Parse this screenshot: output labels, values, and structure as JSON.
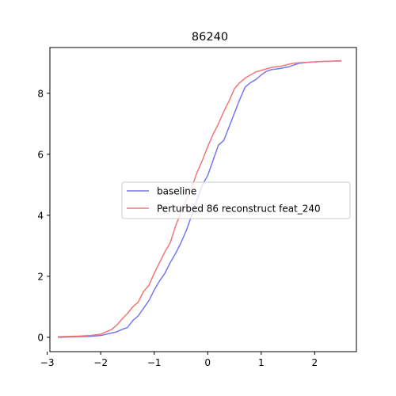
{
  "chart_data": {
    "type": "line",
    "title": "86240",
    "xlabel": "",
    "ylabel": "",
    "xlim": [
      -2.95,
      2.78
    ],
    "ylim": [
      -0.47,
      9.5
    ],
    "xticks": [
      -3,
      -2,
      -1,
      0,
      1,
      2
    ],
    "yticks": [
      0,
      2,
      4,
      6,
      8
    ],
    "grid": false,
    "legend_position": "center-right",
    "series": [
      {
        "name": "baseline",
        "color": "#7777ee",
        "x": [
          -2.8,
          -2.6,
          -2.4,
          -2.2,
          -2.0,
          -1.9,
          -1.8,
          -1.7,
          -1.6,
          -1.5,
          -1.4,
          -1.3,
          -1.2,
          -1.1,
          -1.0,
          -0.9,
          -0.8,
          -0.7,
          -0.6,
          -0.5,
          -0.4,
          -0.3,
          -0.2,
          -0.1,
          0.0,
          0.1,
          0.2,
          0.3,
          0.4,
          0.5,
          0.6,
          0.7,
          0.8,
          0.9,
          1.0,
          1.1,
          1.2,
          1.3,
          1.4,
          1.5,
          1.6,
          1.7,
          1.8,
          1.9,
          2.0,
          2.1,
          2.2,
          2.3,
          2.4,
          2.5
        ],
        "y": [
          0.0,
          0.01,
          0.02,
          0.03,
          0.06,
          0.1,
          0.14,
          0.18,
          0.26,
          0.32,
          0.55,
          0.7,
          0.95,
          1.2,
          1.55,
          1.85,
          2.1,
          2.45,
          2.75,
          3.1,
          3.5,
          4.0,
          4.5,
          5.0,
          5.3,
          5.8,
          6.3,
          6.45,
          6.9,
          7.35,
          7.8,
          8.2,
          8.35,
          8.45,
          8.6,
          8.72,
          8.78,
          8.8,
          8.83,
          8.86,
          8.92,
          8.98,
          9.0,
          9.02,
          9.03,
          9.04,
          9.05,
          9.05,
          9.06,
          9.06
        ]
      },
      {
        "name": "Perturbed 86 reconstruct feat_240",
        "color": "#ee7777",
        "x": [
          -2.8,
          -2.6,
          -2.4,
          -2.2,
          -2.0,
          -1.9,
          -1.8,
          -1.7,
          -1.6,
          -1.5,
          -1.4,
          -1.3,
          -1.2,
          -1.1,
          -1.0,
          -0.9,
          -0.8,
          -0.7,
          -0.6,
          -0.5,
          -0.4,
          -0.3,
          -0.2,
          -0.1,
          0.0,
          0.1,
          0.2,
          0.3,
          0.4,
          0.5,
          0.6,
          0.7,
          0.8,
          0.9,
          1.0,
          1.1,
          1.2,
          1.3,
          1.4,
          1.5,
          1.6,
          1.7,
          1.8,
          1.9,
          2.0,
          2.1,
          2.2,
          2.3,
          2.4,
          2.5
        ],
        "y": [
          0.02,
          0.03,
          0.04,
          0.06,
          0.1,
          0.18,
          0.25,
          0.4,
          0.6,
          0.78,
          1.0,
          1.15,
          1.5,
          1.7,
          2.1,
          2.45,
          2.8,
          3.1,
          3.65,
          4.1,
          4.5,
          4.9,
          5.4,
          5.8,
          6.25,
          6.65,
          7.0,
          7.4,
          7.75,
          8.15,
          8.35,
          8.5,
          8.6,
          8.7,
          8.75,
          8.8,
          8.85,
          8.87,
          8.9,
          8.95,
          8.98,
          9.0,
          9.01,
          9.02,
          9.03,
          9.04,
          9.05,
          9.05,
          9.06,
          9.07
        ]
      }
    ]
  }
}
